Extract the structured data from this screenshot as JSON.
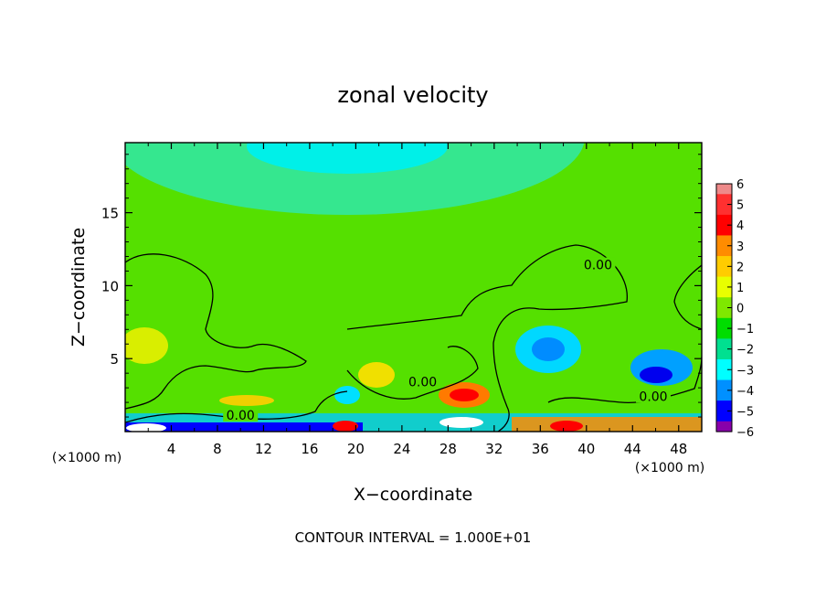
{
  "chart_data": {
    "type": "heatmap",
    "title": "zonal velocity",
    "xlabel": "X−coordinate",
    "ylabel": "Z−coordinate",
    "x_unit_left": "(×1000 m)",
    "x_unit_right": "(×1000 m)",
    "xlim": [
      0,
      50
    ],
    "ylim": [
      0,
      19.8
    ],
    "x_ticks": [
      4,
      8,
      12,
      16,
      20,
      24,
      28,
      32,
      36,
      40,
      44,
      48
    ],
    "y_ticks": [
      5,
      10,
      15
    ],
    "colorbar": {
      "levels": [
        6,
        5,
        4,
        3,
        2,
        1,
        0,
        -1,
        -2,
        -3,
        -4,
        -5,
        -6
      ],
      "labels": [
        "6",
        "5",
        "4",
        "3",
        "2",
        "1",
        "0",
        "−1",
        "−2",
        "−3",
        "−4",
        "−5",
        "−6"
      ],
      "colors": [
        "#ee8a8a",
        "#ff3030",
        "#ff0000",
        "#ff8c00",
        "#ffcc00",
        "#e8ff00",
        "#7fe800",
        "#00dd00",
        "#00e090",
        "#00ffff",
        "#0090ff",
        "#0000ff",
        "#8800aa"
      ]
    },
    "contour_labels": [
      {
        "text": "0.00",
        "x": 41,
        "y": 11.3
      },
      {
        "text": "0.00",
        "x": 25.8,
        "y": 3.3
      },
      {
        "text": "0.00",
        "x": 10,
        "y": 1.0
      },
      {
        "text": "0.00",
        "x": 45.8,
        "y": 2.3
      }
    ],
    "features": [
      {
        "kind": "min",
        "x": 36.5,
        "y": 5.6,
        "value": -3
      },
      {
        "kind": "min",
        "x": 46,
        "y": 4.1,
        "value": -4.5
      },
      {
        "kind": "max",
        "x": 29.5,
        "y": 2.6,
        "value": 4.5
      },
      {
        "kind": "max",
        "x": 22,
        "y": 4.0,
        "value": 2
      },
      {
        "kind": "max",
        "x": 1.5,
        "y": 5.5,
        "value": 2
      },
      {
        "kind": "min",
        "x": 22,
        "y": 19.2,
        "value": -2
      }
    ],
    "footnote": "CONTOUR INTERVAL = 1.000E+01"
  }
}
